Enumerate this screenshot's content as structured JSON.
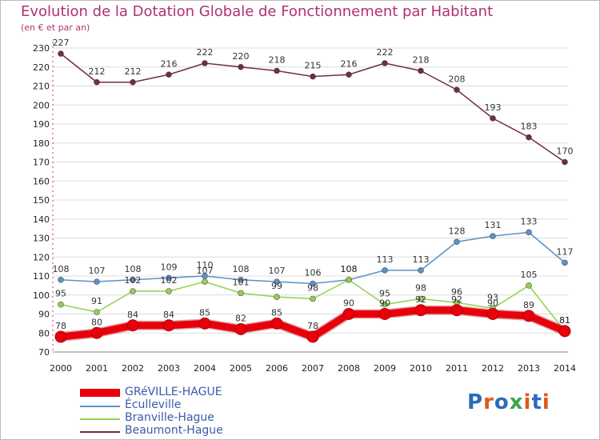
{
  "chart_data": {
    "type": "line",
    "title": "Evolution de la Dotation Globale de Fonctionnement par Habitant",
    "subtitle": "(en € et par an)",
    "xlabel": "",
    "ylabel": "",
    "x": [
      "2000",
      "2001",
      "2002",
      "2003",
      "2004",
      "2005",
      "2006",
      "2007",
      "2008",
      "2009",
      "2010",
      "2011",
      "2012",
      "2013",
      "2014"
    ],
    "yticks": [
      "70",
      "80",
      "90",
      "100",
      "110",
      "120",
      "130",
      "140",
      "150",
      "160",
      "170",
      "180",
      "190",
      "200",
      "210",
      "220",
      "230"
    ],
    "ylim": [
      70,
      230
    ],
    "grid": true,
    "legend_position": "bottom-left",
    "series": [
      {
        "name": "GRéVILLE-HAGUE",
        "color": "#e8000b",
        "values": [
          78,
          80,
          84,
          84,
          85,
          82,
          85,
          78,
          90,
          90,
          92,
          92,
          90,
          89,
          81
        ]
      },
      {
        "name": "Éculleville",
        "color": "#5b92c8",
        "values": [
          108,
          107,
          108,
          109,
          110,
          108,
          107,
          106,
          108,
          113,
          113,
          128,
          131,
          133,
          117
        ]
      },
      {
        "name": "Branville-Hague",
        "color": "#92d050",
        "values": [
          95,
          91,
          102,
          102,
          107,
          101,
          99,
          98,
          108,
          95,
          98,
          96,
          93,
          105,
          81
        ]
      },
      {
        "name": "Beaumont-Hague",
        "color": "#722f37",
        "values": [
          227,
          212,
          212,
          216,
          222,
          220,
          218,
          215,
          216,
          222,
          218,
          208,
          193,
          183,
          170
        ]
      }
    ]
  },
  "brand": {
    "text": "Proxiti",
    "letters": [
      "P",
      "r",
      "o",
      "x",
      "i",
      "t",
      "i"
    ],
    "colors": [
      "#2b6cb8",
      "#e05a1b",
      "#2b6cb8",
      "#3aa64a",
      "#e05a1b",
      "#2b6cb8",
      "#e05a1b"
    ]
  }
}
